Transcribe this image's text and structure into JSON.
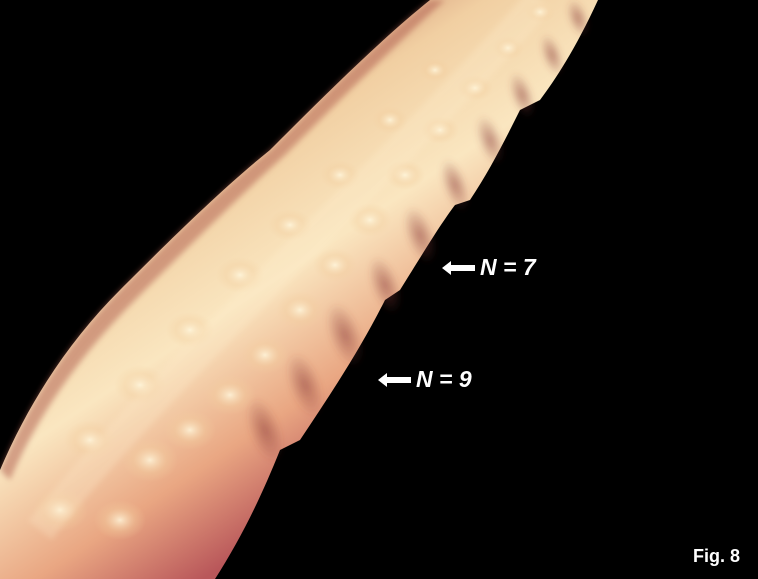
{
  "annotations": [
    {
      "id": "n7",
      "text": "N = 7",
      "icon": "left-arrow-icon"
    },
    {
      "id": "n9",
      "text": "N = 9",
      "icon": "left-arrow-icon"
    }
  ],
  "figure_label": "Fig. 8",
  "colors": {
    "background": "#000000",
    "tube_light": "#f6dcb0",
    "tube_mid": "#e8a882",
    "tube_dark": "#b45a4e",
    "text": "#ffffff"
  }
}
